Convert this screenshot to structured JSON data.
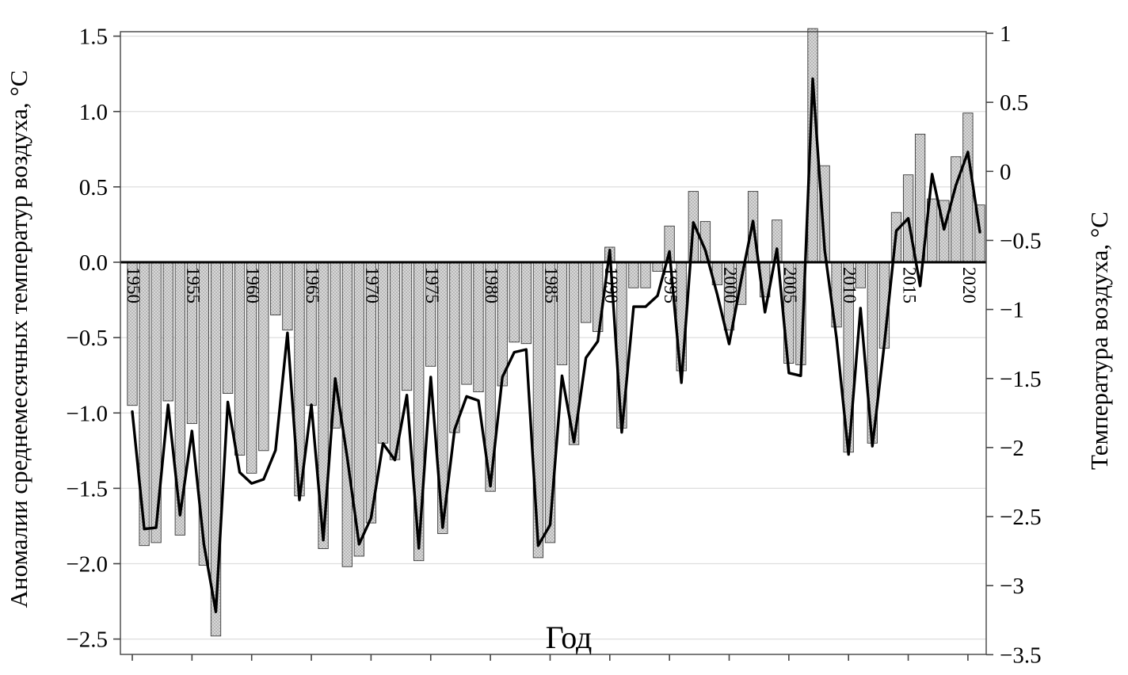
{
  "chart_data": {
    "type": "bar",
    "subtype": "bar+line dual-axis",
    "years": [
      1950,
      1951,
      1952,
      1953,
      1954,
      1955,
      1956,
      1957,
      1958,
      1959,
      1960,
      1961,
      1962,
      1963,
      1964,
      1965,
      1966,
      1967,
      1968,
      1969,
      1970,
      1971,
      1972,
      1973,
      1974,
      1975,
      1976,
      1977,
      1978,
      1979,
      1980,
      1981,
      1982,
      1983,
      1984,
      1985,
      1986,
      1987,
      1988,
      1989,
      1990,
      1991,
      1992,
      1993,
      1994,
      1995,
      1996,
      1997,
      1998,
      1999,
      2000,
      2001,
      2002,
      2003,
      2004,
      2005,
      2006,
      2007,
      2008,
      2009,
      2010,
      2011,
      2012,
      2013,
      2014,
      2015,
      2016,
      2017,
      2018,
      2019,
      2020,
      2021
    ],
    "series": [
      {
        "name": "anomaly-bars",
        "axis": "left",
        "style": "hatched-bar",
        "values": [
          -0.95,
          -1.88,
          -1.86,
          -0.92,
          -1.81,
          -1.07,
          -2.01,
          -2.48,
          -0.87,
          -1.28,
          -1.4,
          -1.25,
          -0.35,
          -0.45,
          -1.55,
          -0.95,
          -1.9,
          -1.1,
          -2.02,
          -1.95,
          -1.73,
          -1.2,
          -1.31,
          -0.85,
          -1.98,
          -0.69,
          -1.8,
          -1.13,
          -0.81,
          -0.86,
          -1.52,
          -0.82,
          -0.53,
          -0.54,
          -1.96,
          -1.86,
          -0.68,
          -1.21,
          -0.4,
          -0.46,
          0.1,
          -1.1,
          -0.17,
          -0.17,
          -0.06,
          0.24,
          -0.72,
          0.47,
          0.27,
          -0.15,
          -0.45,
          -0.28,
          0.47,
          -0.23,
          0.28,
          -0.67,
          -0.68,
          1.55,
          0.64,
          -0.43,
          -1.26,
          -0.17,
          -1.2,
          -0.57,
          0.33,
          0.58,
          0.85,
          0.42,
          0.41,
          0.7,
          0.99,
          0.38
        ]
      },
      {
        "name": "temperature-line",
        "axis": "right",
        "style": "black-line",
        "values": [
          -1.74,
          -2.59,
          -2.58,
          -1.69,
          -2.49,
          -1.88,
          -2.7,
          -3.19,
          -1.67,
          -2.18,
          -2.26,
          -2.23,
          -2.02,
          -1.17,
          -2.38,
          -1.69,
          -2.67,
          -1.5,
          -2.07,
          -2.7,
          -2.51,
          -1.97,
          -2.09,
          -1.62,
          -2.73,
          -1.49,
          -2.58,
          -1.87,
          -1.63,
          -1.66,
          -2.28,
          -1.49,
          -1.31,
          -1.29,
          -2.71,
          -2.56,
          -1.48,
          -1.96,
          -1.35,
          -1.23,
          -0.57,
          -1.89,
          -0.98,
          -0.98,
          -0.9,
          -0.58,
          -1.53,
          -0.37,
          -0.57,
          -0.89,
          -1.25,
          -0.79,
          -0.36,
          -1.02,
          -0.56,
          -1.46,
          -1.48,
          0.67,
          -0.57,
          -1.21,
          -2.05,
          -0.99,
          -1.99,
          -1.25,
          -0.43,
          -0.34,
          -0.83,
          -0.02,
          -0.42,
          -0.1,
          0.14,
          -0.44
        ]
      }
    ],
    "left_axis": {
      "label": "Аномалии среднемесячных температур воздуха, °С",
      "min": -2.5,
      "max": 1.5,
      "tick_labels": [
        "1.5",
        "1.0",
        "0.5",
        "0.0",
        "−0.5",
        "−1.0",
        "−1.5",
        "−2.0",
        "−2.5"
      ],
      "tick_values": [
        1.5,
        1.0,
        0.5,
        0.0,
        -0.5,
        -1.0,
        -1.5,
        -2.0,
        -2.5
      ]
    },
    "right_axis": {
      "label": "Температура воздуха, °С",
      "min": -3.5,
      "max": 1,
      "tick_labels": [
        "1",
        "0.5",
        "0",
        "−0.5",
        "−1",
        "−1.5",
        "−2",
        "−2.5",
        "−3",
        "−3.5"
      ],
      "tick_values": [
        1,
        0.5,
        0,
        -0.5,
        -1,
        -1.5,
        -2,
        -2.5,
        -3,
        -3.5
      ]
    },
    "x_axis": {
      "label": "Год",
      "tick_years": [
        1950,
        1955,
        1960,
        1965,
        1970,
        1975,
        1980,
        1985,
        1990,
        1995,
        2000,
        2005,
        2010,
        2015,
        2020
      ]
    },
    "grid": true,
    "zero_line": true,
    "colors": {
      "bar_fill": "#d7d7d7",
      "bar_dot": "#8f8f8f",
      "bar_stroke": "#3a3a3a",
      "line": "#000000",
      "grid": "#dedede",
      "axis": "#444444",
      "background": "#ffffff"
    }
  }
}
